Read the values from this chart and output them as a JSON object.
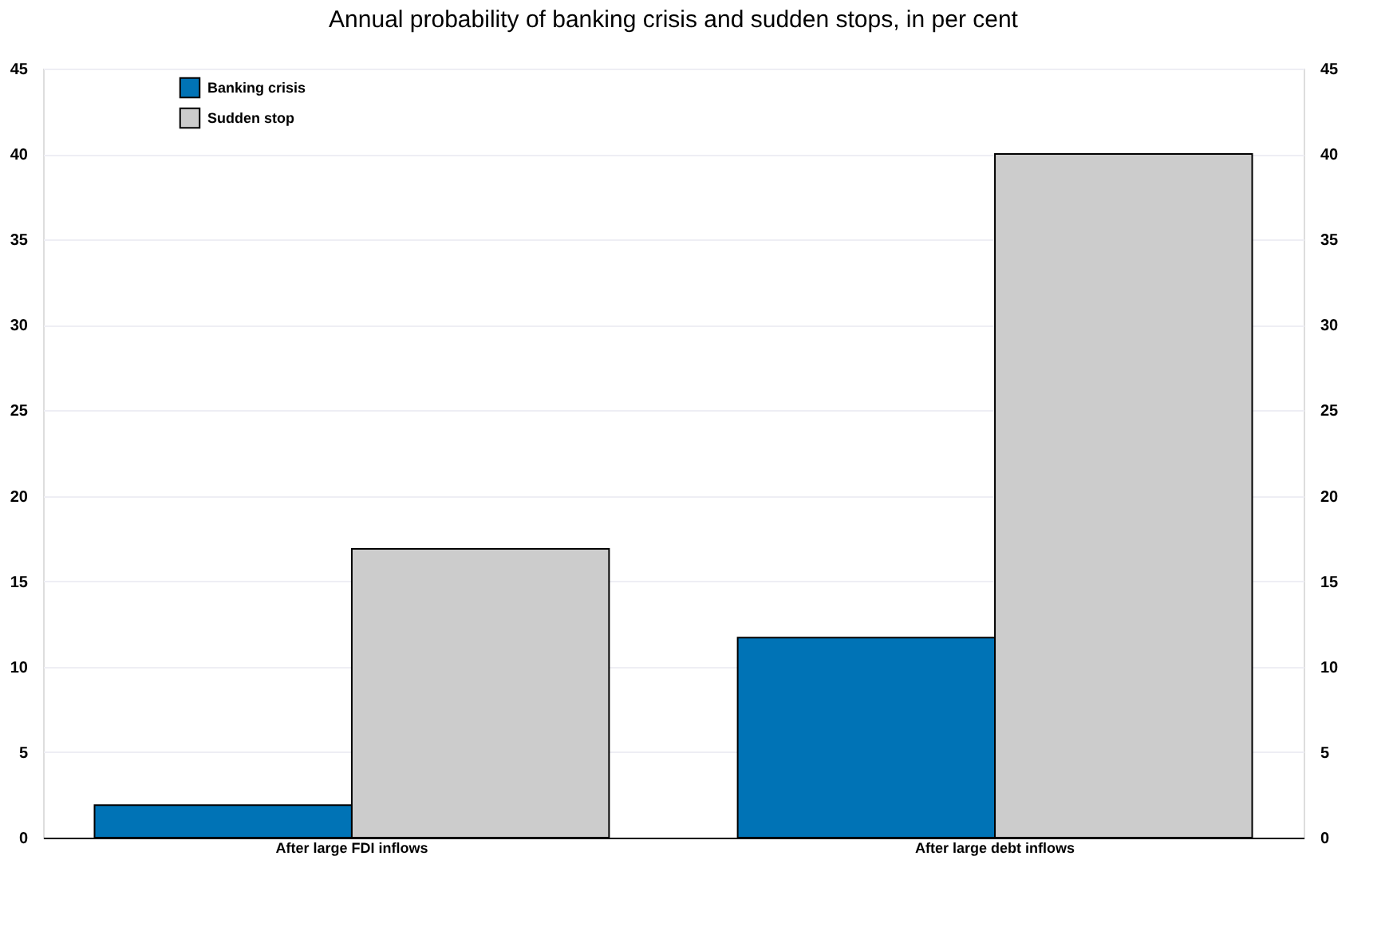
{
  "chart_data": {
    "type": "bar",
    "title": "Annual probability of banking crisis and sudden stops, in per cent",
    "categories": [
      "After large FDI inflows",
      "After large debt inflows"
    ],
    "series": [
      {
        "name": "Banking crisis",
        "color": "#0073b6",
        "values": [
          1.9,
          11.7
        ]
      },
      {
        "name": "Sudden stop",
        "color": "#cccccc",
        "values": [
          16.9,
          40
        ]
      }
    ],
    "ylim": [
      0,
      45
    ],
    "yticks": [
      0,
      5,
      10,
      15,
      20,
      25,
      30,
      35,
      40,
      45
    ],
    "y2lim": [
      0,
      45
    ],
    "y2ticks": [
      0,
      5,
      10,
      15,
      20,
      25,
      30,
      35,
      40,
      45
    ],
    "grid": "y",
    "legend": "top left"
  }
}
